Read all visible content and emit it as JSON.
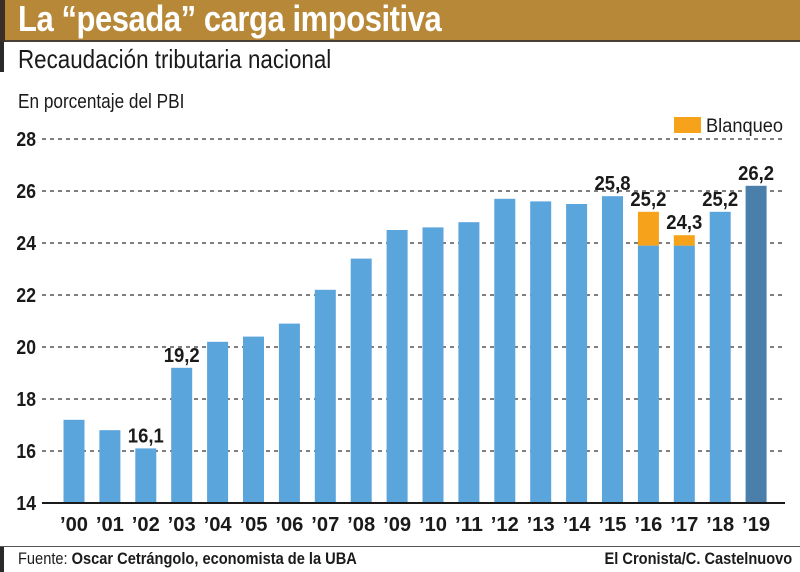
{
  "header": {
    "title": "La “pesada” carga impositiva",
    "subtitle": "Recaudación tributaria nacional",
    "unit": "En porcentaje del PBI"
  },
  "footer": {
    "source_label": "Fuente:",
    "source_value": "Oscar Cetrángolo, economista de la UBA",
    "credit": "El Cronista/C. Castelnuovo"
  },
  "colors": {
    "header": "#b78838",
    "bar": "#5aa5dc",
    "bar_highlight": "#4a7fac",
    "blanqueo": "#f7a21b"
  },
  "chart_data": {
    "type": "bar",
    "title": "Recaudación tributaria nacional",
    "ylabel": "En porcentaje del PBI",
    "xlabel": "",
    "ylim": [
      14,
      28
    ],
    "yticks": [
      14,
      16,
      18,
      20,
      22,
      24,
      26,
      28
    ],
    "grid": true,
    "legend": {
      "position": "top-right",
      "entries": [
        "Blanqueo"
      ]
    },
    "categories": [
      "'00",
      "'01",
      "'02",
      "'03",
      "'04",
      "'05",
      "'06",
      "'07",
      "'08",
      "'09",
      "'10",
      "'11",
      "'12",
      "'13",
      "'14",
      "'15",
      "'16",
      "'17",
      "'18",
      "'19"
    ],
    "series": [
      {
        "name": "Recaudación",
        "values": [
          17.2,
          16.8,
          16.1,
          19.2,
          20.2,
          20.4,
          20.9,
          22.2,
          23.4,
          24.5,
          24.6,
          24.8,
          25.7,
          25.6,
          25.5,
          25.8,
          23.9,
          23.9,
          25.2,
          26.2
        ]
      },
      {
        "name": "Blanqueo",
        "values": [
          0,
          0,
          0,
          0,
          0,
          0,
          0,
          0,
          0,
          0,
          0,
          0,
          0,
          0,
          0,
          0,
          1.3,
          0.4,
          0,
          0
        ]
      }
    ],
    "totals": [
      17.2,
      16.8,
      16.1,
      19.2,
      20.2,
      20.4,
      20.9,
      22.2,
      23.4,
      24.5,
      24.6,
      24.8,
      25.7,
      25.6,
      25.5,
      25.8,
      25.2,
      24.3,
      25.2,
      26.2
    ],
    "highlight_index": 19,
    "data_labels": [
      {
        "index": 2,
        "text": "16,1"
      },
      {
        "index": 3,
        "text": "19,2"
      },
      {
        "index": 15,
        "text": "25,8"
      },
      {
        "index": 16,
        "text": "25,2"
      },
      {
        "index": 17,
        "text": "24,3"
      },
      {
        "index": 18,
        "text": "25,2"
      },
      {
        "index": 19,
        "text": "26,2"
      }
    ]
  }
}
